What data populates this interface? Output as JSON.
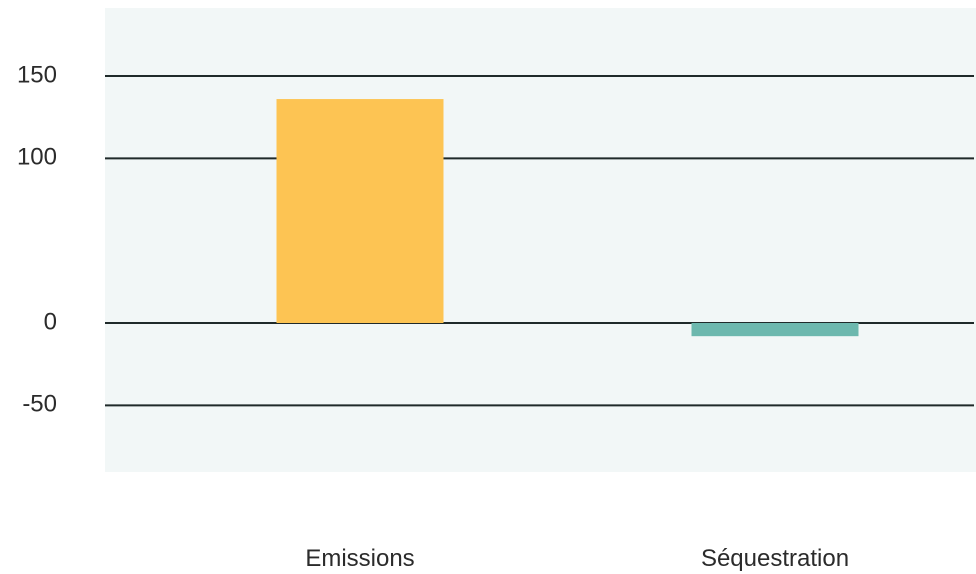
{
  "chart_data": {
    "type": "bar",
    "categories": [
      "Emissions",
      "Séquestration"
    ],
    "values": [
      136,
      -8
    ],
    "yticks": [
      -50,
      0,
      100,
      150
    ],
    "ytick_labels": [
      "-50",
      "0",
      "100",
      "150"
    ],
    "ylim": [
      -50,
      150
    ],
    "grid": true,
    "title": "",
    "xlabel": "",
    "ylabel": "",
    "colors": {
      "plot_background": "#f2f7f7",
      "bars": [
        "#fdc453",
        "#6db8ae"
      ],
      "gridline": "#1f2a2a"
    }
  }
}
